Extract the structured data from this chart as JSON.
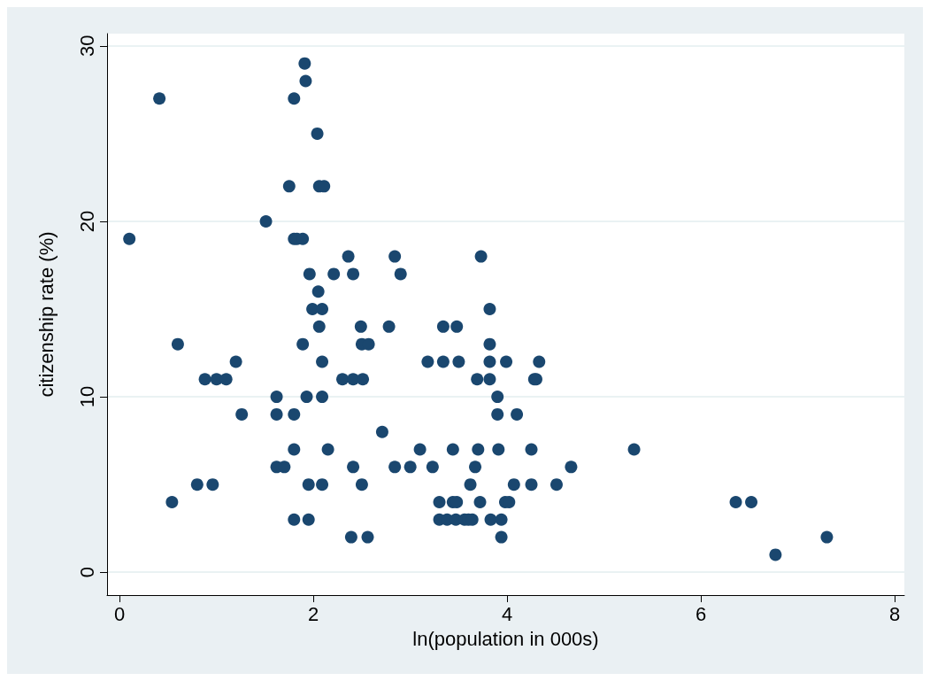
{
  "chart_data": {
    "type": "scatter",
    "xlabel": "ln(population in 000s)",
    "ylabel": "citizenship rate (%)",
    "xlim": [
      -0.13,
      8.1
    ],
    "xticks": [
      0,
      2,
      4,
      6,
      8
    ],
    "ylim": [
      -1.3,
      30.7
    ],
    "yticks": [
      0,
      10,
      20,
      30
    ],
    "grid": "y",
    "marker": "circle",
    "series": [
      {
        "color": "#1a476f",
        "x": [
          1.91,
          1.92,
          0.41,
          1.8,
          2.04,
          1.75,
          2.06,
          2.11,
          1.51,
          0.1,
          1.8,
          1.83,
          1.89,
          2.36,
          2.84,
          3.73,
          1.96,
          2.21,
          2.41,
          2.9,
          2.05,
          1.99,
          2.09,
          3.82,
          2.06,
          2.49,
          2.78,
          3.34,
          3.48,
          0.6,
          1.89,
          2.5,
          2.57,
          3.82,
          1.2,
          2.09,
          3.18,
          3.34,
          3.5,
          3.82,
          3.99,
          4.33,
          0.88,
          1.0,
          1.1,
          2.3,
          2.41,
          2.51,
          3.69,
          3.82,
          4.28,
          4.3,
          1.62,
          1.93,
          2.09,
          3.9,
          1.26,
          1.62,
          1.8,
          3.9,
          4.1,
          2.71,
          1.8,
          2.15,
          3.1,
          3.44,
          3.7,
          3.91,
          4.25,
          5.31,
          1.62,
          1.7,
          2.41,
          2.84,
          3.0,
          3.23,
          3.67,
          4.66,
          0.8,
          0.96,
          1.95,
          2.09,
          2.5,
          3.62,
          4.07,
          4.25,
          4.51,
          0.54,
          3.3,
          3.44,
          3.48,
          3.72,
          3.98,
          4.02,
          6.36,
          6.52,
          1.8,
          1.95,
          3.3,
          3.38,
          3.47,
          3.56,
          3.6,
          3.64,
          3.83,
          3.94,
          2.39,
          2.56,
          3.94,
          6.77,
          7.3
        ],
        "values": [
          29,
          28,
          27,
          27,
          25,
          22,
          22,
          22,
          20,
          19,
          19,
          19,
          19,
          18,
          18,
          18,
          17,
          17,
          17,
          17,
          16,
          15,
          15,
          15,
          14,
          14,
          14,
          14,
          14,
          13,
          13,
          13,
          13,
          13,
          12,
          12,
          12,
          12,
          12,
          12,
          12,
          12,
          11,
          11,
          11,
          11,
          11,
          11,
          11,
          11,
          11,
          11,
          10,
          10,
          10,
          10,
          9,
          9,
          9,
          9,
          9,
          8,
          7,
          7,
          7,
          7,
          7,
          7,
          7,
          7,
          6,
          6,
          6,
          6,
          6,
          6,
          6,
          6,
          5,
          5,
          5,
          5,
          5,
          5,
          5,
          5,
          5,
          4,
          4,
          4,
          4,
          4,
          4,
          4,
          4,
          4,
          3,
          3,
          3,
          3,
          3,
          3,
          3,
          3,
          3,
          3,
          2,
          2,
          2,
          1,
          2
        ]
      }
    ]
  }
}
